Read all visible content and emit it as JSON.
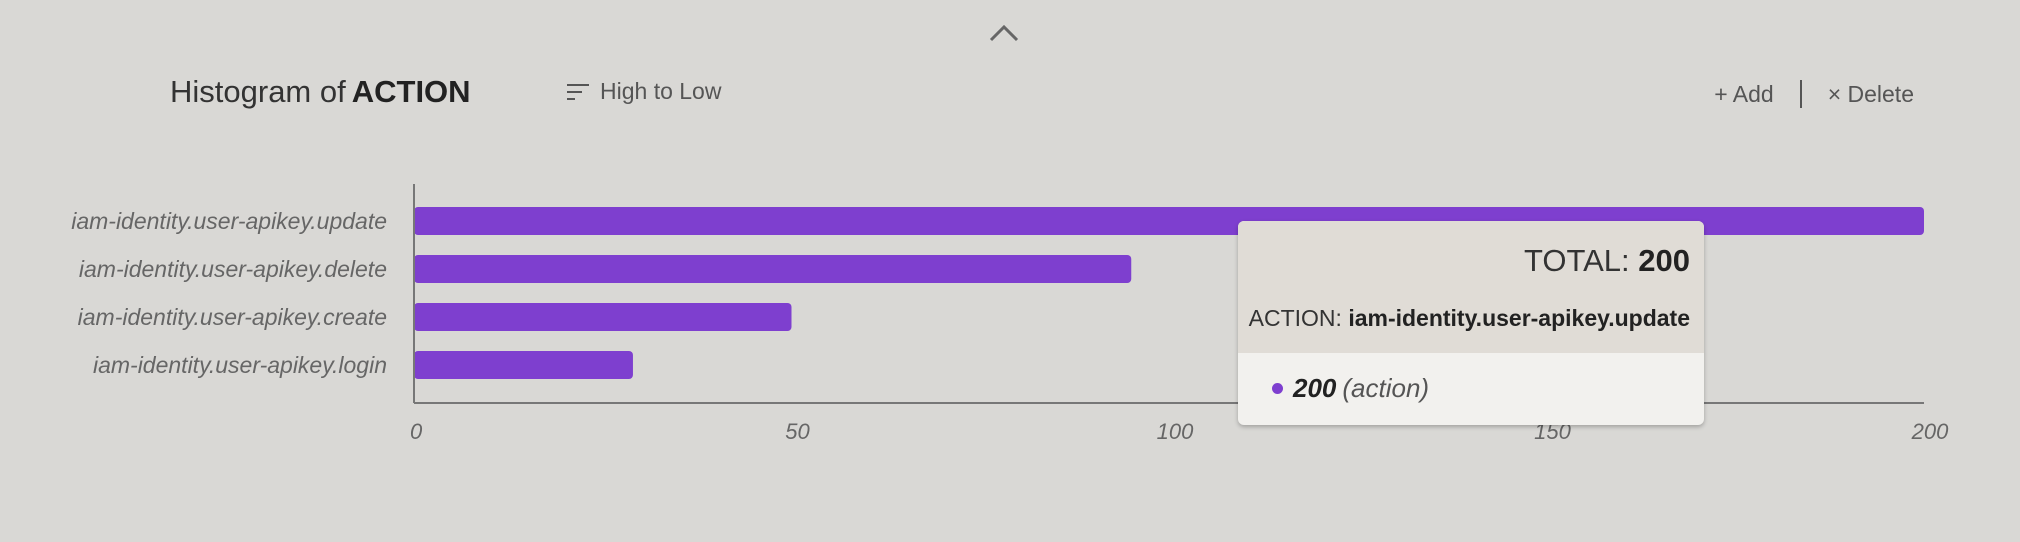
{
  "header": {
    "title_prefix": "Histogram of",
    "title_field": "ACTION",
    "sort_label": "High to Low",
    "add_label": "+ Add",
    "delete_label": "× Delete"
  },
  "colors": {
    "bar": "#7e3fcf",
    "axis": "#777777"
  },
  "tooltip": {
    "total_label": "TOTAL:",
    "total_value": "200",
    "action_label": "ACTION:",
    "action_value": "iam-identity.user-apikey.update",
    "series_value": "200",
    "series_name": "(action)"
  },
  "chart_data": {
    "type": "bar",
    "orientation": "horizontal",
    "categories": [
      "iam-identity.user-apikey.update",
      "iam-identity.user-apikey.delete",
      "iam-identity.user-apikey.create",
      "iam-identity.user-apikey.login"
    ],
    "values": [
      200,
      95,
      50,
      29
    ],
    "xlim": [
      0,
      200
    ],
    "xticks": [
      0,
      50,
      100,
      150,
      200
    ],
    "grid": false
  }
}
